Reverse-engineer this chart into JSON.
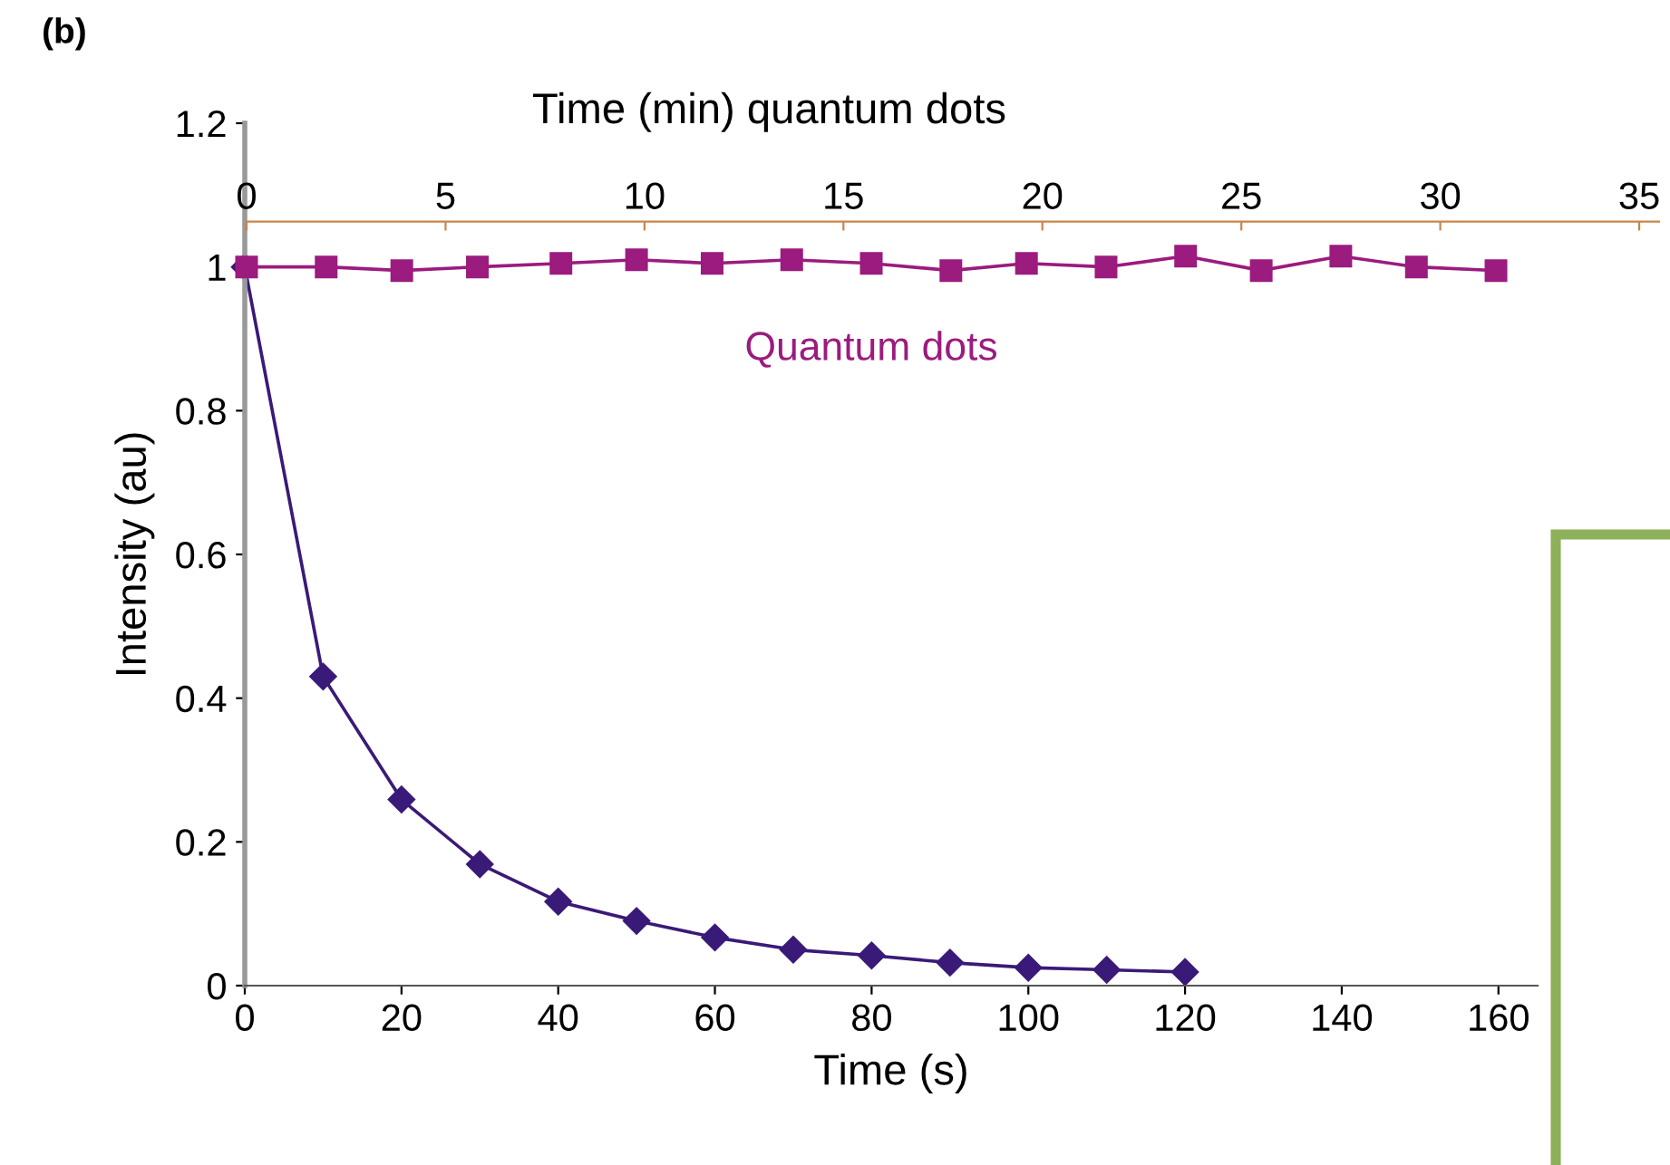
{
  "chart_data": {
    "type": "line",
    "title": "(b)",
    "xlabel": "Time (s)",
    "x2label": "Time (min) quantum dots",
    "ylabel": "Intensity (au)",
    "xlim": [
      0,
      165
    ],
    "xticks": [
      0,
      20,
      40,
      60,
      80,
      100,
      120,
      140,
      160
    ],
    "x2lim": [
      0,
      35.5
    ],
    "x2ticks": [
      0,
      5,
      10,
      15,
      20,
      25,
      30,
      35
    ],
    "ylim": [
      0,
      1.2
    ],
    "yticks": [
      0,
      0.2,
      0.4,
      0.6,
      0.8,
      1,
      1.2
    ],
    "grid": false,
    "legend": false,
    "series": [
      {
        "name": "Quantum dots",
        "axis": "x2",
        "color": "#9b1b7e",
        "marker": "square",
        "x": [
          0,
          2.0,
          3.9,
          5.8,
          7.9,
          9.8,
          11.7,
          13.7,
          15.7,
          17.7,
          19.6,
          21.6,
          23.6,
          25.5,
          27.5,
          29.4,
          31.4
        ],
        "values": [
          1.0,
          1.0,
          0.995,
          1.0,
          1.005,
          1.01,
          1.005,
          1.01,
          1.005,
          0.995,
          1.005,
          1.0,
          1.015,
          0.995,
          1.015,
          1.0,
          0.995
        ]
      },
      {
        "color": "#3a1a78",
        "marker": "diamond",
        "x": [
          0,
          10,
          20,
          30,
          40,
          50,
          60,
          70,
          80,
          90,
          100,
          110,
          120
        ],
        "values": [
          1.0,
          0.43,
          0.259,
          0.169,
          0.117,
          0.09,
          0.067,
          0.05,
          0.042,
          0.032,
          0.025,
          0.022,
          0.019
        ]
      }
    ]
  }
}
